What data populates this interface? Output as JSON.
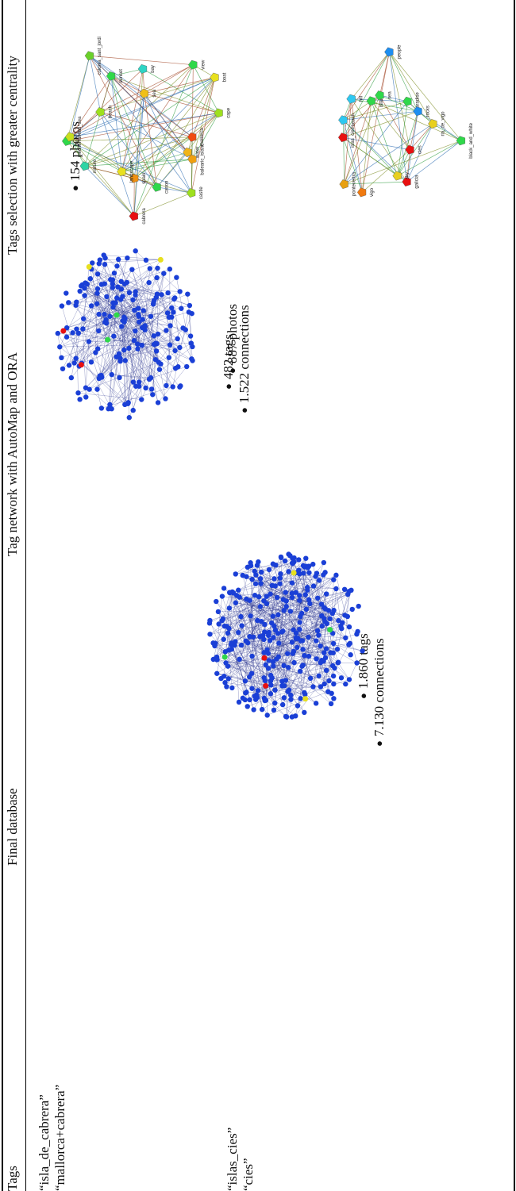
{
  "table": {
    "headers": {
      "tags": "Tags",
      "final_database": "Final database",
      "tag_network": "Tag network with AutoMap and ORA",
      "selection": "Tags selection with greater centrality"
    },
    "rows": [
      {
        "tags": [
          "“isla_de_cabrera”",
          "“mallorca+cabrera”"
        ],
        "photos": "154 photos",
        "tag_count": "482 tags",
        "connections": "1.522 connections",
        "graph": {
          "nodes": [
            {
              "label": "bay",
              "color": "#2fd4c4"
            },
            {
              "label": "view",
              "color": "#2fd84a"
            },
            {
              "label": "boat",
              "color": "#e8e01e"
            },
            {
              "label": "cape",
              "color": "#9ee01e"
            },
            {
              "label": "mallorca",
              "color": "#f04a10"
            },
            {
              "label": "water",
              "color": "#f0b418"
            },
            {
              "label": "balearic_island",
              "color": "#f0a010"
            },
            {
              "label": "castle",
              "color": "#9ee01e"
            },
            {
              "label": "canon",
              "color": "#2fd84a"
            },
            {
              "label": "cabrera",
              "color": "#e81010"
            },
            {
              "label": "spain",
              "color": "#f09010"
            },
            {
              "label": "landscape",
              "color": "#e8e01e"
            },
            {
              "label": "nature",
              "color": "#2fd4a4"
            },
            {
              "label": "blue",
              "color": "#2fd84a"
            },
            {
              "label": "mediterranean_sea",
              "color": "#c8e01e"
            },
            {
              "label": "beach",
              "color": "#9ee01e"
            },
            {
              "label": "colonia_sant_jordi",
              "color": "#6ad02a"
            },
            {
              "label": "sunset",
              "color": "#2fd84a"
            },
            {
              "label": "sea",
              "color": "#f0c018"
            }
          ]
        }
      },
      {
        "tags": [
          "“islas_cies”",
          "“cies”"
        ],
        "photos": "887 photos",
        "tag_count": "1.860 tags",
        "connections": "7.130 connections",
        "graph": {
          "nodes": [
            {
              "label": "people",
              "color": "#1e8ef0"
            },
            {
              "label": "paradise",
              "color": "#2fd84a"
            },
            {
              "label": "rocks",
              "color": "#1e8ef0"
            },
            {
              "label": "ria_de_vigo",
              "color": "#e8d01e"
            },
            {
              "label": "black_and_white",
              "color": "#2fd84a"
            },
            {
              "label": "cies",
              "color": "#e81010"
            },
            {
              "label": "galicia",
              "color": "#e81010"
            },
            {
              "label": "sky",
              "color": "#e8d01e"
            },
            {
              "label": "vigo",
              "color": "#f07a10"
            },
            {
              "label": "pontevedra",
              "color": "#e8a010"
            },
            {
              "label": "islas_cies",
              "color": "#e81010"
            },
            {
              "label": "beach",
              "color": "#2ec8f0"
            },
            {
              "label": "hill",
              "color": "#2ec8f0"
            },
            {
              "label": "island",
              "color": "#2fd84a"
            },
            {
              "label": "sea",
              "color": "#2fd84a"
            }
          ]
        }
      }
    ]
  },
  "colors": {
    "network_node": "#1a3fd6",
    "network_edge": "#1e2a8a",
    "label_text": "#222222"
  }
}
